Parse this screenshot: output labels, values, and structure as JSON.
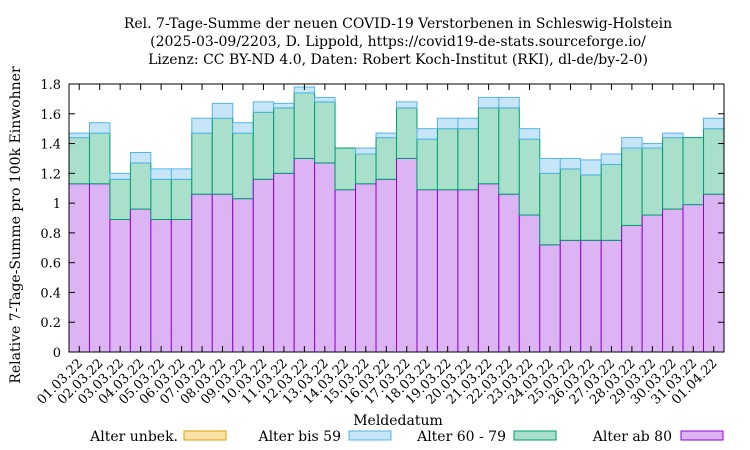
{
  "chart_data": {
    "type": "bar",
    "stacked": true,
    "title_lines": [
      "Rel. 7-Tage-Summe der neuen COVID-19 Verstorbenen in Schleswig-Holstein",
      "(2025-03-09/2203, D. Lippold, https://covid19-de-stats.sourceforge.io/",
      "Lizenz: CC BY-ND 4.0, Daten: Robert Koch-Institut (RKI), dl-de/by-2-0)"
    ],
    "xlabel": "Meldedatum",
    "ylabel": "Relative 7-Tage-Summe pro 100k Einwohner",
    "ylim": [
      0,
      1.8
    ],
    "yticks": [
      "0",
      "0.2",
      "0.4",
      "0.6",
      "0.8",
      "1",
      "1.2",
      "1.4",
      "1.6",
      "1.8"
    ],
    "ytick_values": [
      0,
      0.2,
      0.4,
      0.6,
      0.8,
      1.0,
      1.2,
      1.4,
      1.6,
      1.8
    ],
    "grid": false,
    "legend_position": "bottom",
    "categories": [
      "01.03.22",
      "02.03.22",
      "03.03.22",
      "04.03.22",
      "05.03.22",
      "06.03.22",
      "07.03.22",
      "08.03.22",
      "09.03.22",
      "10.03.22",
      "11.03.22",
      "12.03.22",
      "13.03.22",
      "14.03.22",
      "15.03.22",
      "16.03.22",
      "17.03.22",
      "18.03.22",
      "19.03.22",
      "20.03.22",
      "21.03.22",
      "22.03.22",
      "23.03.22",
      "24.03.22",
      "25.03.22",
      "26.03.22",
      "27.03.22",
      "28.03.22",
      "29.03.22",
      "30.03.22",
      "31.03.22",
      "01.04.22"
    ],
    "series": [
      {
        "name": "Alter ab 80",
        "fill": "#dcb4f4",
        "stroke": "#9400d3",
        "values": [
          1.13,
          1.13,
          0.89,
          0.96,
          0.89,
          0.89,
          1.06,
          1.06,
          1.03,
          1.16,
          1.2,
          1.3,
          1.27,
          1.09,
          1.13,
          1.16,
          1.3,
          1.09,
          1.09,
          1.09,
          1.13,
          1.06,
          0.92,
          0.72,
          0.75,
          0.75,
          0.75,
          0.85,
          0.92,
          0.96,
          0.99,
          1.06
        ]
      },
      {
        "name": "Alter 60 - 79",
        "fill": "#a8e0cc",
        "stroke": "#009e73",
        "values": [
          0.31,
          0.34,
          0.27,
          0.31,
          0.27,
          0.27,
          0.41,
          0.51,
          0.44,
          0.45,
          0.44,
          0.44,
          0.41,
          0.28,
          0.2,
          0.28,
          0.34,
          0.34,
          0.41,
          0.41,
          0.51,
          0.58,
          0.51,
          0.48,
          0.48,
          0.44,
          0.51,
          0.52,
          0.45,
          0.48,
          0.45,
          0.44
        ]
      },
      {
        "name": "Alter bis 59",
        "fill": "#c6e6f8",
        "stroke": "#56b4e9",
        "values": [
          0.03,
          0.07,
          0.04,
          0.07,
          0.07,
          0.07,
          0.1,
          0.1,
          0.07,
          0.07,
          0.03,
          0.04,
          0.03,
          0.0,
          0.04,
          0.03,
          0.04,
          0.07,
          0.07,
          0.07,
          0.07,
          0.07,
          0.07,
          0.1,
          0.07,
          0.1,
          0.07,
          0.07,
          0.03,
          0.03,
          0.0,
          0.07
        ]
      },
      {
        "name": "Alter unbek.",
        "fill": "#fbe3a8",
        "stroke": "#e69f00",
        "values": [
          0,
          0,
          0,
          0,
          0,
          0,
          0,
          0,
          0,
          0,
          0,
          0,
          0,
          0,
          0,
          0,
          0,
          0,
          0,
          0,
          0,
          0,
          0,
          0,
          0,
          0,
          0,
          0,
          0,
          0,
          0,
          0
        ]
      }
    ],
    "legend_order": [
      "Alter unbek.",
      "Alter bis 59",
      "Alter 60 - 79",
      "Alter ab 80"
    ]
  }
}
